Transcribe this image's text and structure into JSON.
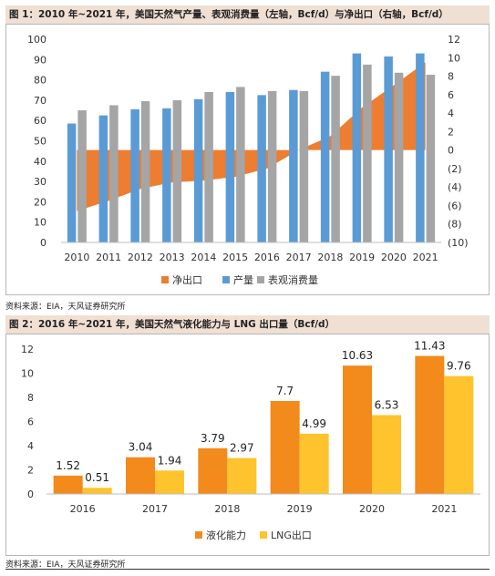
{
  "figure1": {
    "title": "图 1：2010 年~2021 年，美国天然气产量、表观消费量（左轴，Bcf/d）与净出口（右轴，Bcf/d）",
    "source": "资料来源：EIA，天风证券研究所"
  },
  "figure2": {
    "title": "图 2：2016 年~2021 年，美国天然气液化能力与 LNG 出口量（Bcf/d）",
    "source": "资料来源：EIA，天风证券研究所"
  },
  "colors": {
    "orange": "#ed7d31",
    "blue": "#5b9bd5",
    "gray": "#a5a5a5",
    "lng_orange": "#f28a1c",
    "lng_yellow": "#fec32d",
    "title_bg": "#f0dfd3"
  },
  "chart_data": [
    {
      "type": "bar",
      "categories": [
        "2010",
        "2011",
        "2012",
        "2013",
        "2014",
        "2015",
        "2016",
        "2017",
        "2018",
        "2019",
        "2020",
        "2021"
      ],
      "series": [
        {
          "name": "净出口",
          "type": "area",
          "axis": "right",
          "values": [
            -6.6,
            -5.5,
            -4.2,
            -3.5,
            -3.3,
            -2.9,
            -2.0,
            0.0,
            1.5,
            4.6,
            7.0,
            9.5
          ]
        },
        {
          "name": "产量",
          "type": "bar",
          "axis": "left",
          "values": [
            58.5,
            62.5,
            65.5,
            66,
            70.5,
            74,
            72.5,
            75,
            84,
            93,
            91.5,
            93
          ]
        },
        {
          "name": "表观消费量",
          "type": "bar",
          "axis": "left",
          "values": [
            65,
            67.5,
            69.5,
            70,
            74,
            76.5,
            74.5,
            74.5,
            82,
            87.5,
            83.5,
            82.5
          ]
        }
      ],
      "yticks_left": [
        "0",
        "10",
        "20",
        "30",
        "40",
        "50",
        "60",
        "70",
        "80",
        "90",
        "100"
      ],
      "yticks_right": [
        "(10)",
        "(8)",
        "(6)",
        "(4)",
        "(2)",
        "0",
        "2",
        "4",
        "6",
        "8",
        "10",
        "12"
      ],
      "ylim_left": [
        0,
        100
      ],
      "ylim_right": [
        -10,
        12
      ],
      "legend": [
        "净出口",
        "产量",
        "表观消费量"
      ],
      "legend_position": "bottom"
    },
    {
      "type": "bar",
      "categories": [
        "2016",
        "2017",
        "2018",
        "2019",
        "2020",
        "2021"
      ],
      "series": [
        {
          "name": "液化能力",
          "values": [
            1.52,
            3.04,
            3.79,
            7.7,
            10.63,
            11.43
          ],
          "labels": [
            "1.52",
            "3.04",
            "3.79",
            "7.7",
            "10.63",
            "11.43"
          ]
        },
        {
          "name": "LNG出口",
          "values": [
            0.51,
            1.94,
            2.97,
            4.99,
            6.53,
            9.76
          ],
          "labels": [
            "0.51",
            "1.94",
            "2.97",
            "4.99",
            "6.53",
            "9.76"
          ]
        }
      ],
      "yticks": [
        "0",
        "2",
        "4",
        "6",
        "8",
        "10",
        "12"
      ],
      "ylim": [
        0,
        12
      ],
      "legend": [
        "液化能力",
        "LNG出口"
      ],
      "legend_position": "bottom"
    }
  ]
}
